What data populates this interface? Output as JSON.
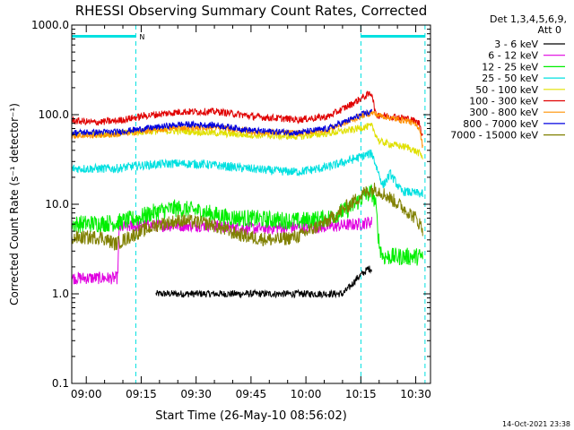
{
  "chart_data": {
    "type": "line",
    "title": "RHESSI Observing Summary Count Rates, Corrected",
    "xlabel": "Start Time (26-May-10 08:56:02)",
    "ylabel": "Corrected Count Rate (s⁻¹ detector⁻¹)",
    "x_unit": "minutes since 08:56:02",
    "xlim": [
      0,
      98
    ],
    "ylim": [
      0.1,
      1000
    ],
    "yscale": "log",
    "x_ticks": [
      {
        "value": 3.97,
        "label": "09:00"
      },
      {
        "value": 18.97,
        "label": "09:15"
      },
      {
        "value": 33.97,
        "label": "09:30"
      },
      {
        "value": 48.97,
        "label": "09:45"
      },
      {
        "value": 63.97,
        "label": "10:00"
      },
      {
        "value": 78.97,
        "label": "10:15"
      },
      {
        "value": 93.97,
        "label": "10:30"
      }
    ],
    "y_ticks": [
      {
        "value": 0.1,
        "label": "0.1"
      },
      {
        "value": 1,
        "label": "1.0"
      },
      {
        "value": 10,
        "label": "10.0"
      },
      {
        "value": 100,
        "label": "100.0"
      },
      {
        "value": 1000,
        "label": "1000.0"
      }
    ],
    "legend_header": [
      "Det 1,3,4,5,6,9,",
      "Att 0"
    ],
    "legend_position": "right",
    "night_marker_label": "N",
    "night_bars": [
      [
        0,
        17.5
      ],
      [
        79,
        96.5
      ]
    ],
    "vlines": [
      0,
      17.5,
      79,
      96.5
    ],
    "series": [
      {
        "name": "3 - 6 keV",
        "color": "#000000",
        "noise": 0.04,
        "points": [
          [
            23,
            1.0
          ],
          [
            33,
            1.0
          ],
          [
            45,
            1.0
          ],
          [
            58,
            1.0
          ],
          [
            72,
            1.0
          ],
          [
            74,
            1.0
          ],
          [
            76,
            1.2
          ],
          [
            78,
            1.5
          ],
          [
            81,
            1.9
          ],
          [
            82,
            1.9
          ]
        ]
      },
      {
        "name": "6 - 12 keV",
        "color": "#e000e0",
        "noise": 0.07,
        "points": [
          [
            0,
            1.5
          ],
          [
            12.5,
            1.5
          ],
          [
            13,
            5.5
          ],
          [
            19,
            5.8
          ],
          [
            30,
            5.8
          ],
          [
            38,
            5.8
          ],
          [
            45,
            5.4
          ],
          [
            52,
            5.4
          ],
          [
            60,
            5.5
          ],
          [
            70,
            5.6
          ],
          [
            76,
            5.9
          ],
          [
            79,
            6.0
          ],
          [
            81,
            6.3
          ],
          [
            82,
            6.3
          ]
        ]
      },
      {
        "name": "12 - 25 keV",
        "color": "#00ee00",
        "noise": 0.1,
        "points": [
          [
            0,
            6.0
          ],
          [
            12,
            6.2
          ],
          [
            18,
            7.0
          ],
          [
            22,
            8.0
          ],
          [
            28,
            9.0
          ],
          [
            34,
            8.5
          ],
          [
            42,
            7.2
          ],
          [
            52,
            6.8
          ],
          [
            62,
            6.5
          ],
          [
            70,
            7.0
          ],
          [
            76,
            9.0
          ],
          [
            80,
            12.5
          ],
          [
            82,
            13.5
          ],
          [
            83,
            10.0
          ],
          [
            84,
            3.5
          ],
          [
            85,
            2.6
          ],
          [
            96,
            2.6
          ]
        ]
      },
      {
        "name": "25 - 50 keV",
        "color": "#00e0e0",
        "noise": 0.05,
        "points": [
          [
            0,
            25
          ],
          [
            12,
            25
          ],
          [
            18,
            27
          ],
          [
            28,
            28.5
          ],
          [
            36,
            28
          ],
          [
            46,
            25.5
          ],
          [
            56,
            23.5
          ],
          [
            62,
            23
          ],
          [
            70,
            26
          ],
          [
            76,
            31
          ],
          [
            80,
            35
          ],
          [
            82,
            37
          ],
          [
            85,
            16
          ],
          [
            87,
            22
          ],
          [
            90,
            14
          ],
          [
            96,
            13
          ]
        ]
      },
      {
        "name": "50 - 100 keV",
        "color": "#e0e000",
        "noise": 0.04,
        "points": [
          [
            0,
            60
          ],
          [
            12,
            61
          ],
          [
            20,
            65
          ],
          [
            30,
            66
          ],
          [
            40,
            62
          ],
          [
            50,
            59
          ],
          [
            62,
            57
          ],
          [
            70,
            62
          ],
          [
            76,
            67
          ],
          [
            80,
            73
          ],
          [
            82,
            74
          ],
          [
            84,
            50
          ],
          [
            88,
            46
          ],
          [
            92,
            43
          ],
          [
            95,
            37
          ],
          [
            96,
            33
          ]
        ]
      },
      {
        "name": "100 - 300 keV",
        "color": "#e00000",
        "noise": 0.04,
        "points": [
          [
            0,
            86
          ],
          [
            6,
            82
          ],
          [
            12,
            85
          ],
          [
            20,
            97
          ],
          [
            30,
            108
          ],
          [
            40,
            108
          ],
          [
            50,
            95
          ],
          [
            62,
            88
          ],
          [
            70,
            95
          ],
          [
            76,
            128
          ],
          [
            80,
            160
          ],
          [
            82,
            175
          ],
          [
            83,
            100
          ],
          [
            88,
            95
          ],
          [
            92,
            90
          ],
          [
            95,
            80
          ],
          [
            96,
            55
          ]
        ]
      },
      {
        "name": "300 - 800 keV",
        "color": "#ff9000",
        "noise": 0.035,
        "points": [
          [
            0,
            58
          ],
          [
            12,
            60
          ],
          [
            20,
            66
          ],
          [
            30,
            72
          ],
          [
            40,
            72
          ],
          [
            50,
            64
          ],
          [
            62,
            62
          ],
          [
            70,
            68
          ],
          [
            76,
            85
          ],
          [
            80,
            100
          ],
          [
            82,
            105
          ],
          [
            84,
            98
          ],
          [
            88,
            90
          ],
          [
            92,
            85
          ],
          [
            95,
            72
          ],
          [
            96,
            40
          ]
        ]
      },
      {
        "name": "800 - 7000 keV",
        "color": "#0000e0",
        "noise": 0.035,
        "points": [
          [
            0,
            63
          ],
          [
            12,
            64
          ],
          [
            20,
            70
          ],
          [
            30,
            78
          ],
          [
            40,
            76
          ],
          [
            50,
            66
          ],
          [
            62,
            63
          ],
          [
            70,
            70
          ],
          [
            76,
            88
          ],
          [
            80,
            103
          ],
          [
            82,
            108
          ]
        ]
      },
      {
        "name": "7000 - 15000 keV",
        "color": "#808000",
        "noise": 0.08,
        "points": [
          [
            0,
            4.2
          ],
          [
            8,
            4.3
          ],
          [
            12,
            3.6
          ],
          [
            18,
            4.8
          ],
          [
            24,
            6.0
          ],
          [
            30,
            6.6
          ],
          [
            38,
            6.0
          ],
          [
            44,
            4.8
          ],
          [
            50,
            4.2
          ],
          [
            56,
            4.0
          ],
          [
            62,
            4.4
          ],
          [
            70,
            6.5
          ],
          [
            76,
            10
          ],
          [
            80,
            13.5
          ],
          [
            83,
            15
          ],
          [
            86,
            12.5
          ],
          [
            90,
            9.5
          ],
          [
            94,
            7.0
          ],
          [
            96,
            5.2
          ]
        ]
      }
    ]
  },
  "footer": {
    "timestamp": "14-Oct-2021 23:38"
  }
}
